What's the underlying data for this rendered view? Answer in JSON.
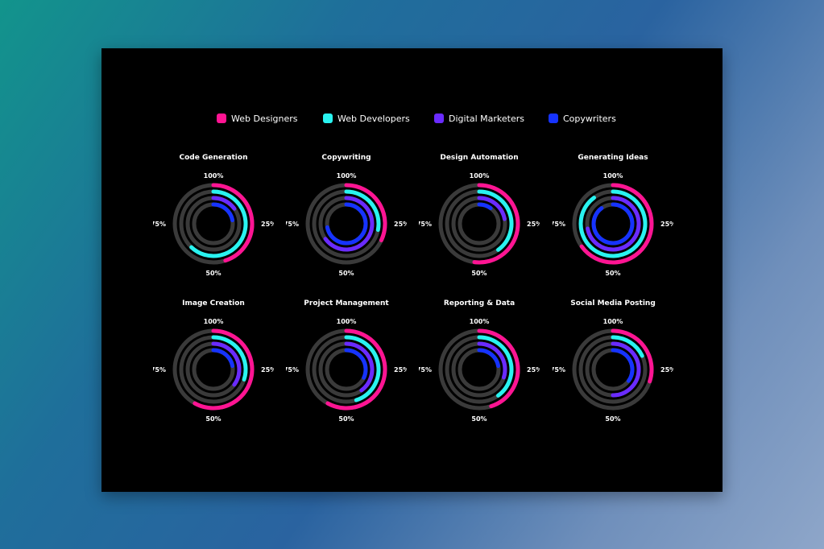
{
  "legend": [
    {
      "label": "Web Designers",
      "color": "#ff1493"
    },
    {
      "label": "Web Developers",
      "color": "#29f3f0"
    },
    {
      "label": "Digital Marketers",
      "color": "#6a2bff"
    },
    {
      "label": "Copywriters",
      "color": "#1633ff"
    }
  ],
  "track_color": "#3a3a3a",
  "chart_data": {
    "type": "radial-bar",
    "tick_labels": [
      "100%",
      "25%",
      "50%",
      "75%"
    ],
    "series": [
      "Web Designers",
      "Web Developers",
      "Digital Marketers",
      "Copywriters"
    ],
    "charts": [
      {
        "title": "Code Generation",
        "values": [
          45,
          62,
          15,
          22
        ]
      },
      {
        "title": "Copywriting",
        "values": [
          32,
          28,
          65,
          72
        ]
      },
      {
        "title": "Design Automation",
        "values": [
          52,
          40,
          22,
          10
        ]
      },
      {
        "title": "Generating Ideas",
        "values": [
          65,
          90,
          72,
          90
        ]
      },
      {
        "title": "Image Creation",
        "values": [
          58,
          30,
          35,
          22
        ]
      },
      {
        "title": "Project Management",
        "values": [
          58,
          45,
          40,
          32
        ]
      },
      {
        "title": "Reporting & Data",
        "values": [
          45,
          40,
          30,
          22
        ]
      },
      {
        "title": "Social Media Posting",
        "values": [
          30,
          18,
          50,
          35
        ]
      }
    ]
  }
}
